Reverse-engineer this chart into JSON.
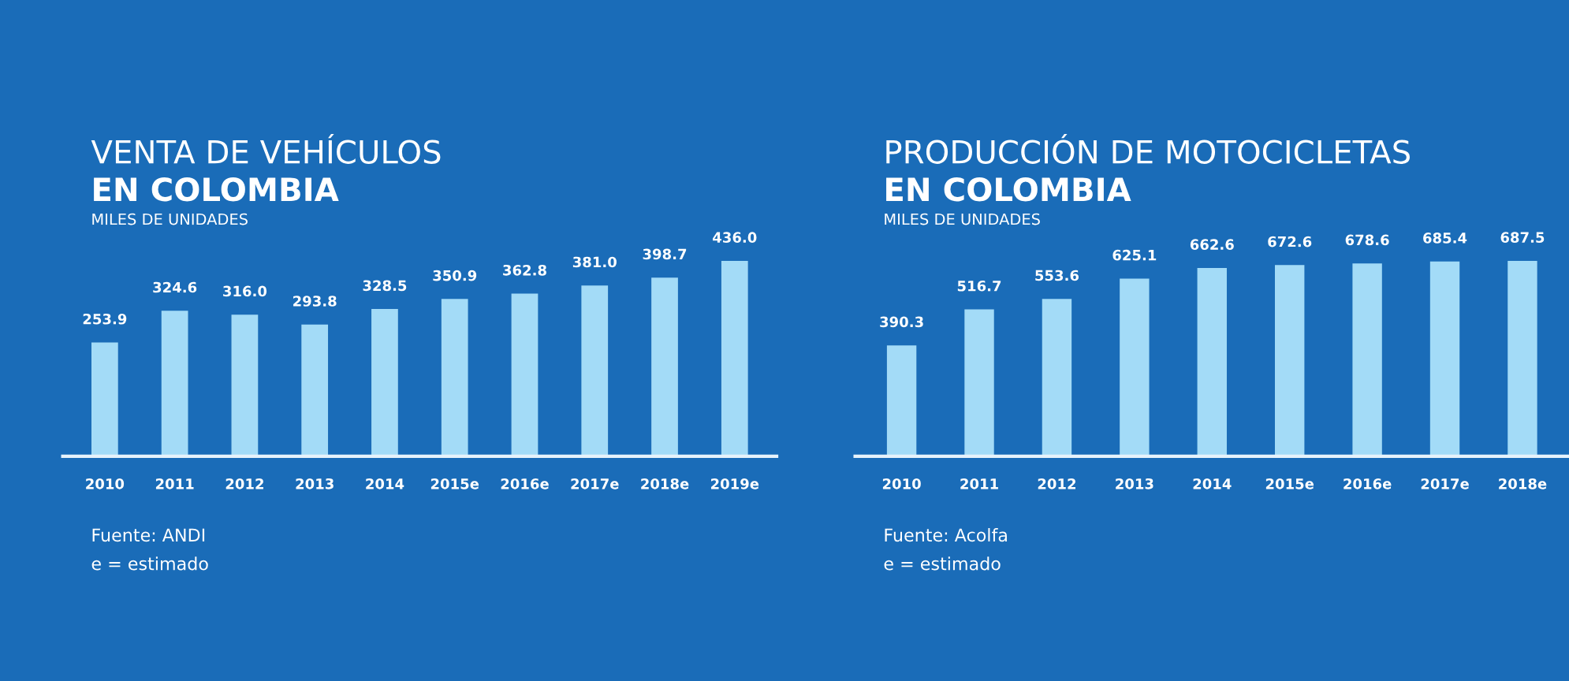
{
  "chart_data": [
    {
      "type": "bar",
      "title": "VENTA DE VEHÍCULOS",
      "subtitle": "EN COLOMBIA",
      "ylabel": "MILES DE UNIDADES",
      "categories": [
        "2010",
        "2011",
        "2012",
        "2013",
        "2014",
        "2015e",
        "2016e",
        "2017e",
        "2018e",
        "2019e"
      ],
      "values": [
        253.9,
        324.6,
        316.0,
        293.8,
        328.5,
        350.9,
        362.8,
        381.0,
        398.7,
        436.0
      ],
      "value_labels": [
        "253.9",
        "324.6",
        "316.0",
        "293.8",
        "328.5",
        "350.9",
        "362.8",
        "381.0",
        "398.7",
        "436.0"
      ],
      "color": "#a3dbf7",
      "annotations": [
        "Fuente: ANDI",
        "e = estimado"
      ]
    },
    {
      "type": "bar",
      "title": "PRODUCCIÓN DE MOTOCICLETAS",
      "subtitle": "EN COLOMBIA",
      "ylabel": "MILES DE UNIDADES",
      "categories": [
        "2010",
        "2011",
        "2012",
        "2013",
        "2014",
        "2015e",
        "2016e",
        "2017e",
        "2018e"
      ],
      "values": [
        390.3,
        516.7,
        553.6,
        625.1,
        662.6,
        672.6,
        678.6,
        685.4,
        687.5
      ],
      "value_labels": [
        "390.3",
        "516.7",
        "553.6",
        "625.1",
        "662.6",
        "672.6",
        "678.6",
        "685.4",
        "687.5"
      ],
      "color": "#a3dbf7",
      "annotations": [
        "Fuente: Acolfa",
        "e = estimado"
      ]
    }
  ]
}
